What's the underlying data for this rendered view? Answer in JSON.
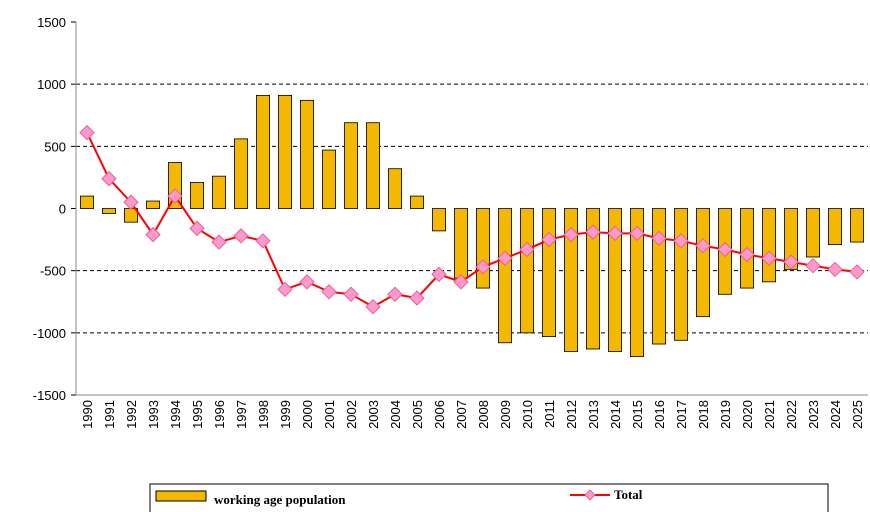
{
  "chart_data": {
    "type": "bar-line",
    "categories": [
      "1990",
      "1991",
      "1992",
      "1993",
      "1994",
      "1995",
      "1996",
      "1997",
      "1998",
      "1999",
      "2000",
      "2001",
      "2002",
      "2003",
      "2004",
      "2005",
      "2006",
      "2007",
      "2008",
      "2009",
      "2010",
      "2011",
      "2012",
      "2013",
      "2014",
      "2015",
      "2016",
      "2017",
      "2018",
      "2019",
      "2020",
      "2021",
      "2022",
      "2023",
      "2024",
      "2025"
    ],
    "series": [
      {
        "name": "working age population",
        "type": "bar",
        "color": "#f5b800",
        "values": [
          100,
          -40,
          -110,
          60,
          370,
          210,
          260,
          560,
          910,
          910,
          870,
          470,
          690,
          690,
          320,
          100,
          -180,
          -560,
          -640,
          -1080,
          -1000,
          -1030,
          -1150,
          -1130,
          -1150,
          -1190,
          -1090,
          -1060,
          -870,
          -690,
          -640,
          -590,
          -490,
          -390,
          -290,
          -270
        ]
      },
      {
        "name": "Total",
        "type": "line",
        "color": "#ff0000",
        "marker_color": "#ff99cc",
        "values": [
          610,
          240,
          50,
          -210,
          100,
          -160,
          -270,
          -220,
          -260,
          -650,
          -590,
          -670,
          -690,
          -790,
          -690,
          -720,
          -530,
          -590,
          -470,
          -400,
          -330,
          -250,
          -210,
          -190,
          -200,
          -200,
          -240,
          -260,
          -300,
          -330,
          -370,
          -400,
          -430,
          -460,
          -490,
          -510
        ]
      }
    ],
    "ylim": [
      -1500,
      1500
    ],
    "yticks": [
      -1500,
      -1000,
      -500,
      0,
      500,
      1000,
      1500
    ],
    "grid": true
  }
}
